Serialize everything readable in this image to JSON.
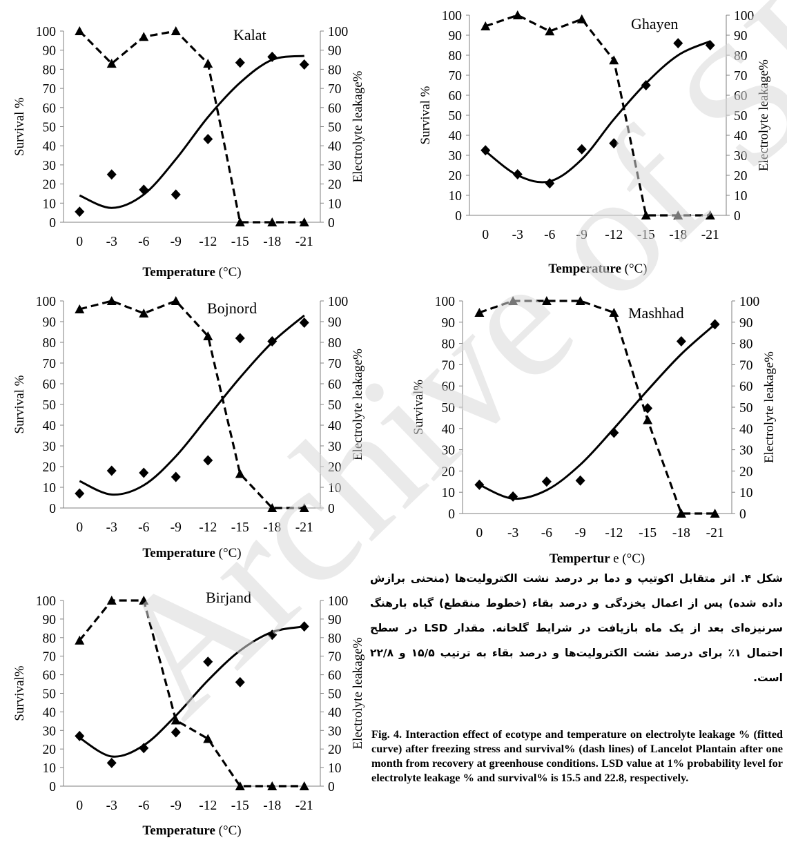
{
  "chart_data": [
    {
      "type": "line",
      "title": "Kalat",
      "categories": [
        "0",
        "-3",
        "-6",
        "-9",
        "-12",
        "-15",
        "-18",
        "-21"
      ],
      "series": [
        {
          "values": [
            5.5,
            25,
            17,
            14.5,
            43.5,
            83.5,
            86.5,
            82.5
          ],
          "marker": "diamond",
          "line": "fitted curve",
          "axis": "right"
        },
        {
          "values": [
            100,
            83,
            97,
            100,
            83,
            0,
            0,
            0
          ],
          "marker": "triangle",
          "line": "dashed",
          "axis": "left"
        }
      ],
      "fitted_curve": [
        14,
        7.5,
        14.5,
        33,
        55,
        73,
        85,
        87
      ],
      "xlabel_bold": "Temperature",
      "xlabel_unit": "(°C)",
      "ylabel": "Survival %",
      "y2label": "Electrolyte leakage%",
      "ylim": [
        0,
        100
      ],
      "y2lim": [
        0,
        100
      ],
      "yticks": [
        0,
        10,
        20,
        30,
        40,
        50,
        60,
        70,
        80,
        90,
        100
      ]
    },
    {
      "type": "line",
      "title": "Ghayen",
      "categories": [
        "0",
        "-3",
        "-6",
        "-9",
        "-12",
        "-15",
        "-18",
        "-21"
      ],
      "series": [
        {
          "values": [
            32.5,
            20.5,
            16,
            33,
            36,
            65,
            86,
            85
          ],
          "marker": "diamond",
          "line": "fitted curve",
          "axis": "right"
        },
        {
          "values": [
            94.5,
            100,
            92,
            98,
            77.5,
            0,
            0,
            0
          ],
          "marker": "triangle",
          "line": "dashed",
          "axis": "left"
        }
      ],
      "fitted_curve": [
        32,
        20,
        17,
        28,
        48,
        66,
        80,
        87
      ],
      "xlabel_bold": "Temperature",
      "xlabel_unit": "(°C)",
      "ylabel": "Survival %",
      "y2label": "Electrolyte leakage%",
      "ylim": [
        0,
        100
      ],
      "y2lim": [
        0,
        100
      ],
      "yticks": [
        0,
        10,
        20,
        30,
        40,
        50,
        60,
        70,
        80,
        90,
        100
      ]
    },
    {
      "type": "line",
      "title": "Bojnord",
      "categories": [
        "0",
        "-3",
        "-6",
        "-9",
        "-12",
        "-15",
        "-18",
        "-21"
      ],
      "series": [
        {
          "values": [
            7,
            18,
            17,
            15,
            23,
            82,
            80.5,
            89.5
          ],
          "marker": "diamond",
          "line": "fitted curve",
          "axis": "right"
        },
        {
          "values": [
            96,
            100,
            94,
            100,
            83,
            16.5,
            0,
            0
          ],
          "marker": "triangle",
          "line": "dashed",
          "axis": "left"
        }
      ],
      "fitted_curve": [
        13,
        6.5,
        11,
        25,
        44,
        63,
        80,
        93
      ],
      "xlabel_bold": "Temperature",
      "xlabel_unit": "(°C)",
      "ylabel": "Survival %",
      "y2label": "Electrolyte leakage%",
      "ylim": [
        0,
        100
      ],
      "y2lim": [
        0,
        100
      ],
      "yticks": [
        0,
        10,
        20,
        30,
        40,
        50,
        60,
        70,
        80,
        90,
        100
      ]
    },
    {
      "type": "line",
      "title": "Mashhad",
      "categories": [
        "0",
        "-3",
        "-6",
        "-9",
        "-12",
        "-15",
        "-18",
        "-21"
      ],
      "series": [
        {
          "values": [
            13.5,
            8,
            15,
            15.5,
            38,
            49.5,
            81,
            89
          ],
          "marker": "diamond",
          "line": "fitted curve",
          "axis": "right"
        },
        {
          "values": [
            94.5,
            100,
            100,
            100,
            94.5,
            44,
            0,
            0
          ],
          "marker": "triangle",
          "line": "dashed",
          "axis": "left"
        }
      ],
      "fitted_curve": [
        13.5,
        7,
        11,
        23,
        40,
        58,
        75,
        89
      ],
      "xlabel_bold": "Tempertur",
      "xlabel_unit": "e (°C)",
      "ylabel": "Survival%",
      "y2label": "Electrolyte leakage%",
      "ylim": [
        0,
        100
      ],
      "y2lim": [
        0,
        100
      ],
      "yticks": [
        0,
        10,
        20,
        30,
        40,
        50,
        60,
        70,
        80,
        90,
        100
      ]
    },
    {
      "type": "line",
      "title": "Birjand",
      "categories": [
        "0",
        "-3",
        "-6",
        "-9",
        "-12",
        "-15",
        "-18",
        "-21"
      ],
      "series": [
        {
          "values": [
            27,
            12.5,
            20.5,
            29,
            67,
            56,
            81.5,
            86
          ],
          "marker": "diamond",
          "line": "fitted curve",
          "axis": "right"
        },
        {
          "values": [
            78.5,
            100,
            100,
            35.5,
            25.5,
            0,
            0,
            0
          ],
          "marker": "triangle",
          "line": "dashed",
          "axis": "left"
        }
      ],
      "fitted_curve": [
        26,
        16,
        22,
        38,
        57,
        73,
        83,
        86
      ],
      "xlabel_bold": "Temperature",
      "xlabel_unit": "(°C)",
      "ylabel": "Survival%",
      "y2label": "Electrolyte leakage%",
      "ylim": [
        0,
        100
      ],
      "y2lim": [
        0,
        100
      ],
      "yticks": [
        0,
        10,
        20,
        30,
        40,
        50,
        60,
        70,
        80,
        90,
        100
      ]
    }
  ],
  "caption_fa": "شکل ۴. اثر متقابل اکوتیپ و دما بر درصد نشت الکترولیت‌ها (منحنی برازش داده شده) پس از اعمال یخزدگی و درصد بقاء (خطوط منقطع) گیاه بارهنگ سرنیزه‌ای بعد از یک ماه بازیافت در شرایط گلخانه. مقدار LSD در سطح احتمال ۱٪ برای درصد نشت الکترولیت‌ها و درصد بقاء به ترتیب ۱۵/۵ و ۲۲/۸ است.",
  "caption_en": "Fig. 4. Interaction effect of ecotype and temperature on electrolyte leakage % (fitted curve) after freezing stress and survival% (dash lines) of Lancelot Plantain after one month from recovery at greenhouse conditions. LSD value at 1% probability level for electrolyte leakage % and survival% is 15.5 and 22.8, respectively.",
  "watermark": "Archive of SID"
}
